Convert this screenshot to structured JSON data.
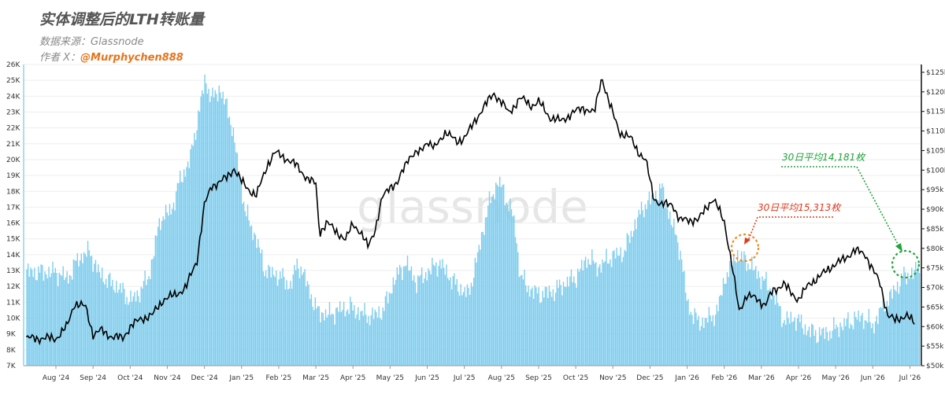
{
  "header": {
    "title": "实体调整后的LTH转账量",
    "source": "数据来源：Glassnode",
    "author_prefix": "作者 X：",
    "author_handle": "@Murphychen888"
  },
  "watermark": "glassnode",
  "chart_data": {
    "type": "bar+line",
    "x_labels": [
      "Aug '24",
      "Sep '24",
      "Oct '24",
      "Nov '24",
      "Dec '24",
      "Jan '25",
      "Feb '25",
      "Mar '25",
      "Apr '25",
      "May '25",
      "Jun '25",
      "Jul '25",
      "Aug '25",
      "Sep '25",
      "Oct '25",
      "Nov '25",
      "Dec '25",
      "Jan '26",
      "Feb '26",
      "Mar '26",
      "Apr '26",
      "May '26",
      "Jun '26",
      "Jul '26"
    ],
    "left_axis": {
      "ticks": [
        "7K",
        "8K",
        "9K",
        "10K",
        "11K",
        "12K",
        "13K",
        "14K",
        "15K",
        "16K",
        "17K",
        "18K",
        "19K",
        "20K",
        "21K",
        "22K",
        "23K",
        "24K",
        "25K",
        "26K"
      ],
      "range": [
        7000,
        26000
      ]
    },
    "right_axis": {
      "ticks": [
        "$50k",
        "$55k",
        "$60k",
        "$65k",
        "$70k",
        "$75k",
        "$80k",
        "$85k",
        "$90k",
        "$95k",
        "$100k",
        "$105k",
        "$110k",
        "$115k",
        "$120k",
        "$125k"
      ],
      "range": [
        50000,
        127000
      ]
    },
    "series": [
      {
        "type": "bar",
        "color": "#7fcdee",
        "points": [
          [
            0,
            12900
          ],
          [
            0.3,
            12500
          ],
          [
            0.6,
            13800
          ],
          [
            0.9,
            14200
          ],
          [
            1.1,
            13000
          ],
          [
            1.4,
            12300
          ],
          [
            1.7,
            11900
          ],
          [
            2,
            11100
          ],
          [
            2.2,
            11500
          ],
          [
            2.5,
            12700
          ],
          [
            2.8,
            16300
          ],
          [
            3.1,
            16800
          ],
          [
            3.3,
            18500
          ],
          [
            3.6,
            20000
          ],
          [
            3.8,
            22500
          ],
          [
            4,
            25000
          ],
          [
            4.2,
            23800
          ],
          [
            4.4,
            24500
          ],
          [
            4.7,
            22500
          ],
          [
            4.9,
            19500
          ],
          [
            5.1,
            16600
          ],
          [
            5.4,
            14900
          ],
          [
            5.6,
            13100
          ],
          [
            5.8,
            12800
          ],
          [
            6,
            12700
          ],
          [
            6.3,
            12000
          ],
          [
            6.5,
            13500
          ],
          [
            6.7,
            12500
          ],
          [
            7,
            10500
          ],
          [
            7.3,
            10200
          ],
          [
            7.6,
            10500
          ],
          [
            7.9,
            10700
          ],
          [
            8.2,
            10300
          ],
          [
            8.5,
            10100
          ],
          [
            8.8,
            10500
          ],
          [
            9.1,
            12400
          ],
          [
            9.4,
            13500
          ],
          [
            9.7,
            12300
          ],
          [
            10,
            12900
          ],
          [
            10.3,
            13500
          ],
          [
            10.6,
            12600
          ],
          [
            10.8,
            12000
          ],
          [
            11.1,
            11500
          ],
          [
            11.4,
            14500
          ],
          [
            11.6,
            16800
          ],
          [
            11.9,
            18700
          ],
          [
            12.1,
            17600
          ],
          [
            12.3,
            16500
          ],
          [
            12.5,
            12700
          ],
          [
            12.7,
            11900
          ],
          [
            13,
            11500
          ],
          [
            13.4,
            11700
          ],
          [
            13.7,
            12200
          ],
          [
            14,
            12600
          ],
          [
            14.3,
            13800
          ],
          [
            14.6,
            13200
          ],
          [
            14.9,
            13800
          ],
          [
            15.3,
            14200
          ],
          [
            15.5,
            15500
          ],
          [
            15.8,
            17000
          ],
          [
            16.1,
            17700
          ],
          [
            16.3,
            18200
          ],
          [
            16.6,
            15800
          ],
          [
            16.8,
            14300
          ],
          [
            17,
            10800
          ],
          [
            17.3,
            9700
          ],
          [
            17.6,
            10000
          ],
          [
            17.8,
            10400
          ],
          [
            18,
            12500
          ],
          [
            18.3,
            14000
          ],
          [
            18.6,
            13600
          ],
          [
            18.8,
            13000
          ],
          [
            19,
            12500
          ],
          [
            19.3,
            11600
          ],
          [
            19.6,
            9800
          ],
          [
            19.9,
            10000
          ],
          [
            20.2,
            9300
          ],
          [
            20.5,
            9000
          ],
          [
            20.8,
            9100
          ],
          [
            21.1,
            9500
          ],
          [
            21.4,
            9800
          ],
          [
            21.7,
            10100
          ],
          [
            22,
            9500
          ],
          [
            22.2,
            10500
          ],
          [
            22.5,
            11500
          ],
          [
            22.8,
            12600
          ],
          [
            23.1,
            12900
          ],
          [
            23.3,
            13200
          ],
          [
            23.5,
            12300
          ]
        ]
      },
      {
        "type": "line",
        "color": "#000000",
        "points": [
          [
            0,
            57000
          ],
          [
            0.3,
            60000
          ],
          [
            0.5,
            66000
          ],
          [
            0.8,
            65000
          ],
          [
            1,
            58000
          ],
          [
            1.2,
            59000
          ],
          [
            1.5,
            57500
          ],
          [
            1.8,
            57000
          ],
          [
            2,
            60000
          ],
          [
            2.3,
            62000
          ],
          [
            2.6,
            63000
          ],
          [
            2.9,
            67000
          ],
          [
            3.2,
            68000
          ],
          [
            3.5,
            70000
          ],
          [
            3.8,
            77000
          ],
          [
            4,
            91000
          ],
          [
            4.2,
            96000
          ],
          [
            4.4,
            97000
          ],
          [
            4.6,
            98000
          ],
          [
            4.8,
            100500
          ],
          [
            5,
            97000
          ],
          [
            5.2,
            95000
          ],
          [
            5.4,
            93500
          ],
          [
            5.7,
            101500
          ],
          [
            5.9,
            104500
          ],
          [
            6.2,
            103000
          ],
          [
            6.5,
            101000
          ],
          [
            6.8,
            97500
          ],
          [
            7,
            96500
          ],
          [
            7.1,
            84000
          ],
          [
            7.3,
            86500
          ],
          [
            7.6,
            84000
          ],
          [
            7.8,
            82000
          ],
          [
            8,
            86500
          ],
          [
            8.2,
            84000
          ],
          [
            8.4,
            80500
          ],
          [
            8.6,
            85000
          ],
          [
            8.8,
            93000
          ],
          [
            9,
            96000
          ],
          [
            9.2,
            96500
          ],
          [
            9.5,
            103500
          ],
          [
            9.8,
            104500
          ],
          [
            10,
            107500
          ],
          [
            10.2,
            105500
          ],
          [
            10.5,
            110000
          ],
          [
            10.8,
            107000
          ],
          [
            11,
            108500
          ],
          [
            11.2,
            111000
          ],
          [
            11.5,
            116000
          ],
          [
            11.8,
            119500
          ],
          [
            12,
            117500
          ],
          [
            12.2,
            114500
          ],
          [
            12.5,
            118500
          ],
          [
            12.8,
            116500
          ],
          [
            13,
            117500
          ],
          [
            13.3,
            113500
          ],
          [
            13.6,
            112500
          ],
          [
            13.9,
            114500
          ],
          [
            14.2,
            116000
          ],
          [
            14.5,
            114500
          ],
          [
            14.7,
            124000
          ],
          [
            14.9,
            117000
          ],
          [
            15.2,
            109500
          ],
          [
            15.5,
            108000
          ],
          [
            15.7,
            104500
          ],
          [
            15.9,
            102000
          ],
          [
            16.1,
            93000
          ],
          [
            16.3,
            91000
          ],
          [
            16.6,
            91500
          ],
          [
            16.8,
            87000
          ],
          [
            17,
            87500
          ],
          [
            17.3,
            87000
          ],
          [
            17.5,
            90500
          ],
          [
            17.7,
            92500
          ],
          [
            17.9,
            89000
          ],
          [
            18,
            87000
          ],
          [
            18.2,
            76000
          ],
          [
            18.4,
            64000
          ],
          [
            18.6,
            68000
          ],
          [
            18.9,
            67000
          ],
          [
            19.1,
            65500
          ],
          [
            19.3,
            69000
          ],
          [
            19.6,
            71000
          ],
          [
            19.8,
            68500
          ],
          [
            20,
            67000
          ],
          [
            20.3,
            71000
          ],
          [
            20.6,
            73000
          ],
          [
            20.9,
            75500
          ],
          [
            21.2,
            77000
          ],
          [
            21.5,
            79500
          ],
          [
            21.8,
            78500
          ],
          [
            22,
            74500
          ],
          [
            22.2,
            71000
          ],
          [
            22.4,
            63000
          ],
          [
            22.6,
            61500
          ],
          [
            22.9,
            63000
          ],
          [
            23.2,
            60000
          ],
          [
            23.5,
            62000
          ]
        ]
      }
    ],
    "annotations": [
      {
        "label": "30日平均15,313枚",
        "color": "#e03a1e"
      },
      {
        "label": "30日平均14,181枚",
        "color": "#22a33a"
      }
    ]
  }
}
